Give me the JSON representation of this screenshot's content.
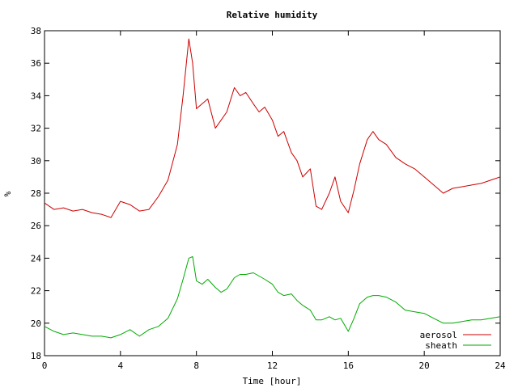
{
  "chart_data": {
    "type": "line",
    "title": "Relative humidity",
    "xlabel": "Time [hour]",
    "ylabel": "%",
    "xlim": [
      0,
      24
    ],
    "ylim": [
      18,
      38
    ],
    "x_ticks": [
      0,
      4,
      8,
      12,
      16,
      20,
      24
    ],
    "y_ticks": [
      18,
      20,
      22,
      24,
      26,
      28,
      30,
      32,
      34,
      36,
      38
    ],
    "grid": false,
    "legend_position": "bottom-right",
    "series": [
      {
        "name": "aerosol",
        "color": "#cc0000",
        "x": [
          0,
          0.5,
          1,
          1.5,
          2,
          2.5,
          3,
          3.5,
          4,
          4.5,
          5,
          5.5,
          6,
          6.5,
          7,
          7.3,
          7.6,
          7.8,
          8,
          8.3,
          8.6,
          9,
          9.3,
          9.6,
          10,
          10.3,
          10.6,
          11,
          11.3,
          11.6,
          12,
          12.3,
          12.6,
          13,
          13.3,
          13.6,
          14,
          14.3,
          14.6,
          15,
          15.3,
          15.6,
          16,
          16.3,
          16.6,
          17,
          17.3,
          17.6,
          18,
          18.5,
          19,
          19.5,
          20,
          20.5,
          21,
          21.5,
          22,
          22.5,
          23,
          23.5,
          24
        ],
        "values": [
          27.4,
          27.0,
          27.1,
          26.9,
          27.0,
          26.8,
          26.7,
          26.5,
          27.5,
          27.3,
          26.9,
          27.0,
          27.8,
          28.8,
          31.0,
          34.0,
          37.5,
          36.0,
          33.2,
          33.5,
          33.8,
          32.0,
          32.5,
          33.0,
          34.5,
          34.0,
          34.2,
          33.5,
          33.0,
          33.3,
          32.5,
          31.5,
          31.8,
          30.5,
          30.0,
          29.0,
          29.5,
          27.2,
          27.0,
          28.0,
          29.0,
          27.5,
          26.8,
          28.2,
          29.8,
          31.3,
          31.8,
          31.3,
          31.0,
          30.2,
          29.8,
          29.5,
          29.0,
          28.5,
          28.0,
          28.3,
          28.4,
          28.5,
          28.6,
          28.8,
          29.0
        ]
      },
      {
        "name": "sheath",
        "color": "#00aa00",
        "x": [
          0,
          0.5,
          1,
          1.5,
          2,
          2.5,
          3,
          3.5,
          4,
          4.5,
          5,
          5.5,
          6,
          6.5,
          7,
          7.3,
          7.6,
          7.8,
          8,
          8.3,
          8.6,
          9,
          9.3,
          9.6,
          10,
          10.3,
          10.6,
          11,
          11.3,
          11.6,
          12,
          12.3,
          12.6,
          13,
          13.3,
          13.6,
          14,
          14.3,
          14.6,
          15,
          15.3,
          15.6,
          16,
          16.3,
          16.6,
          17,
          17.3,
          17.6,
          18,
          18.5,
          19,
          19.5,
          20,
          20.5,
          21,
          21.5,
          22,
          22.5,
          23,
          23.5,
          24
        ],
        "values": [
          19.8,
          19.5,
          19.3,
          19.4,
          19.3,
          19.2,
          19.2,
          19.1,
          19.3,
          19.6,
          19.2,
          19.6,
          19.8,
          20.3,
          21.5,
          22.7,
          24.0,
          24.1,
          22.6,
          22.4,
          22.7,
          22.2,
          21.9,
          22.1,
          22.8,
          23.0,
          23.0,
          23.1,
          22.9,
          22.7,
          22.4,
          21.9,
          21.7,
          21.8,
          21.4,
          21.1,
          20.8,
          20.2,
          20.2,
          20.4,
          20.2,
          20.3,
          19.5,
          20.3,
          21.2,
          21.6,
          21.7,
          21.7,
          21.6,
          21.3,
          20.8,
          20.7,
          20.6,
          20.3,
          20.0,
          20.0,
          20.1,
          20.2,
          20.2,
          20.3,
          20.4
        ]
      }
    ]
  }
}
